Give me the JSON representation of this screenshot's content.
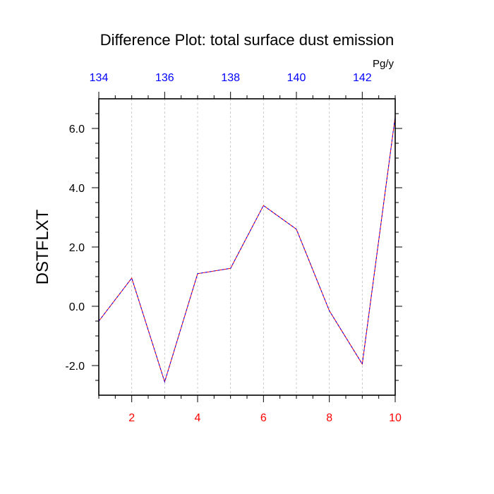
{
  "chart_data": {
    "type": "line",
    "title": "Difference Plot: total surface dust emission",
    "ylabel": "DSTFLXT",
    "units": "Pg/y",
    "x": [
      1,
      2,
      3,
      4,
      5,
      6,
      7,
      8,
      9,
      10
    ],
    "series": [
      {
        "values": [
          -0.5,
          0.95,
          -2.55,
          1.1,
          1.28,
          3.4,
          2.6,
          -0.15,
          -1.95,
          6.4
        ]
      }
    ],
    "xlim": [
      1,
      10
    ],
    "ylim": [
      -3,
      7
    ],
    "yticks": [
      -2,
      0,
      2,
      4,
      6
    ],
    "ytick_labels": [
      "-2.0",
      "0.0",
      "2.0",
      "4.0",
      "6.0"
    ],
    "xticks_bottom": [
      2,
      4,
      6,
      8,
      10
    ],
    "xtick_labels_bottom": [
      "2",
      "4",
      "6",
      "8",
      "10"
    ],
    "xticks_top": [
      134,
      136,
      138,
      140,
      142
    ],
    "xtick_labels_top": [
      "134",
      "136",
      "138",
      "140",
      "142"
    ],
    "top_axis_range": [
      134,
      143
    ],
    "grid": "vertical dashed",
    "colors": {
      "line_primary": "#ff0000",
      "line_secondary": "#0000ff",
      "bottom_ticks": "#ff0000",
      "top_ticks": "#0000ff",
      "grid": "#c0c0c0",
      "frame": "#000000"
    }
  }
}
